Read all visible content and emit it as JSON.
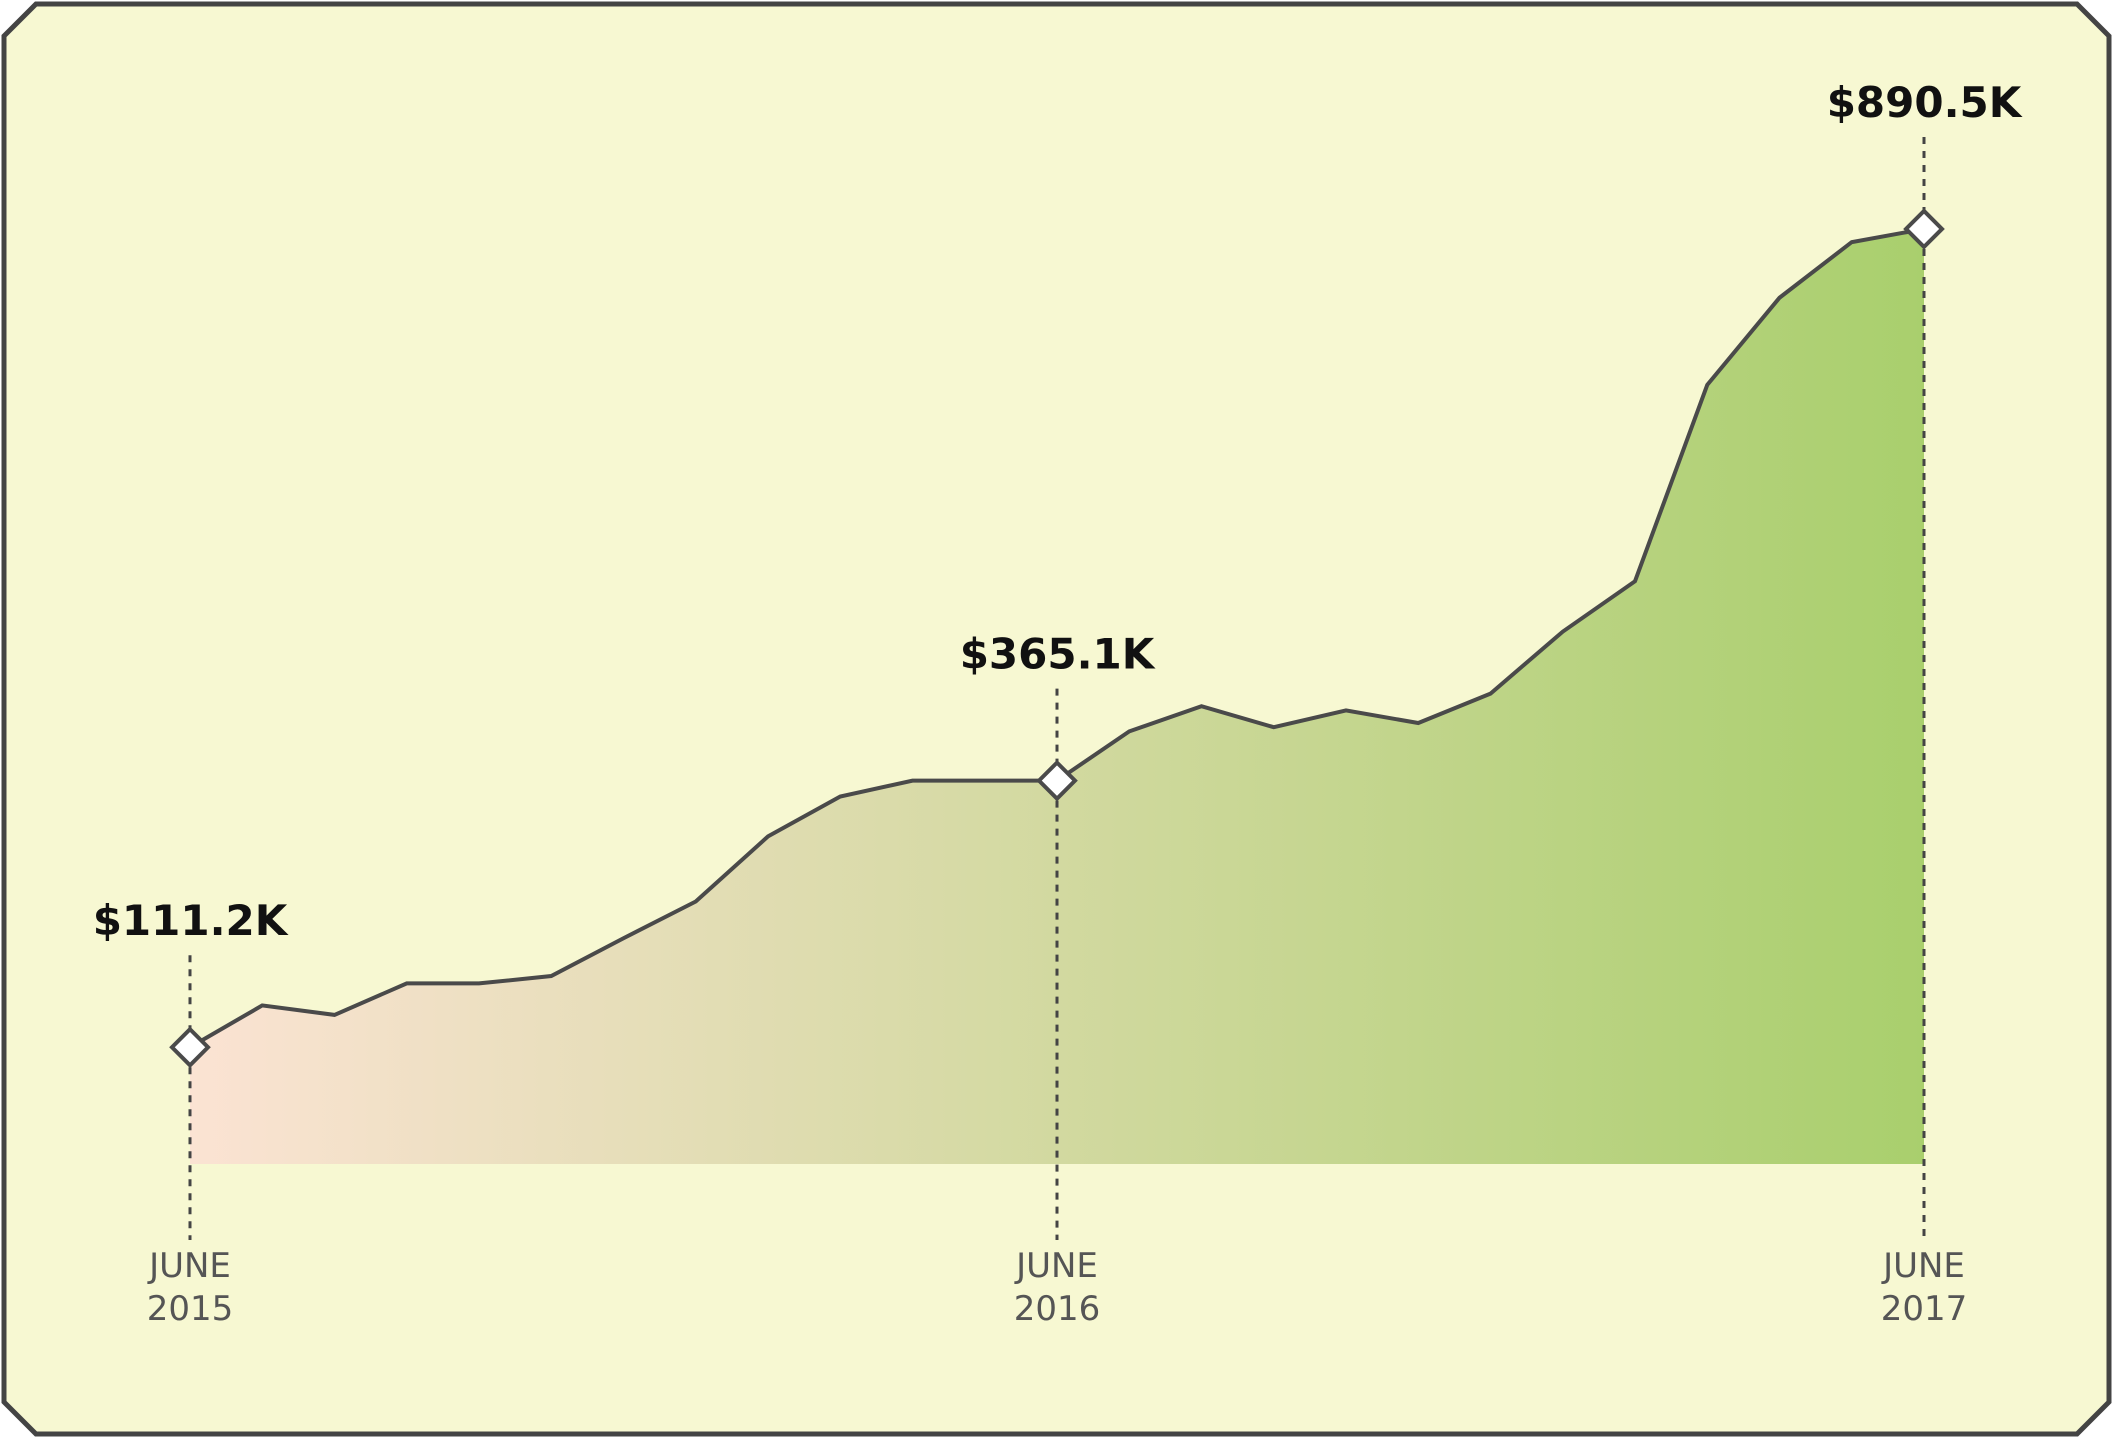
{
  "chart_data": {
    "type": "area",
    "x_ticks": [
      {
        "month": "JUNE",
        "year": "2015",
        "x": "2015-06"
      },
      {
        "month": "JUNE",
        "year": "2016",
        "x": "2016-06"
      },
      {
        "month": "JUNE",
        "year": "2017",
        "x": "2017-06"
      }
    ],
    "annotations": [
      {
        "x": "2015-06",
        "value": 111.2,
        "label": "$111.2K"
      },
      {
        "x": "2016-06",
        "value": 365.1,
        "label": "$365.1K"
      },
      {
        "x": "2017-06",
        "value": 890.5,
        "label": "$890.5K"
      }
    ],
    "series": [
      {
        "x": [
          "2015-06",
          "2015-07",
          "2015-08",
          "2015-09",
          "2015-10",
          "2015-11",
          "2015-12",
          "2016-01",
          "2016-02",
          "2016-03",
          "2016-04",
          "2016-05",
          "2016-06",
          "2016-07",
          "2016-08",
          "2016-09",
          "2016-10",
          "2016-11",
          "2016-12",
          "2017-01",
          "2017-02",
          "2017-03",
          "2017-04",
          "2017-05",
          "2017-06"
        ],
        "values": [
          111.2,
          151,
          142,
          172,
          172,
          179,
          215,
          250,
          312,
          350,
          365.1,
          365.1,
          365.1,
          412,
          436,
          416,
          432,
          420,
          448,
          507,
          555,
          742,
          825,
          878,
          890.5
        ]
      }
    ],
    "ylim": [
      0,
      1000
    ],
    "grid": false,
    "legend": "none",
    "colors": {
      "background": "#f7f8d2",
      "frame": "#444444",
      "line": "#4a4a4a",
      "fill_start": "#fbe3d3",
      "fill_end": "#a9cf6d",
      "marker_fill": "#ffffff",
      "guide": "#444444"
    }
  }
}
